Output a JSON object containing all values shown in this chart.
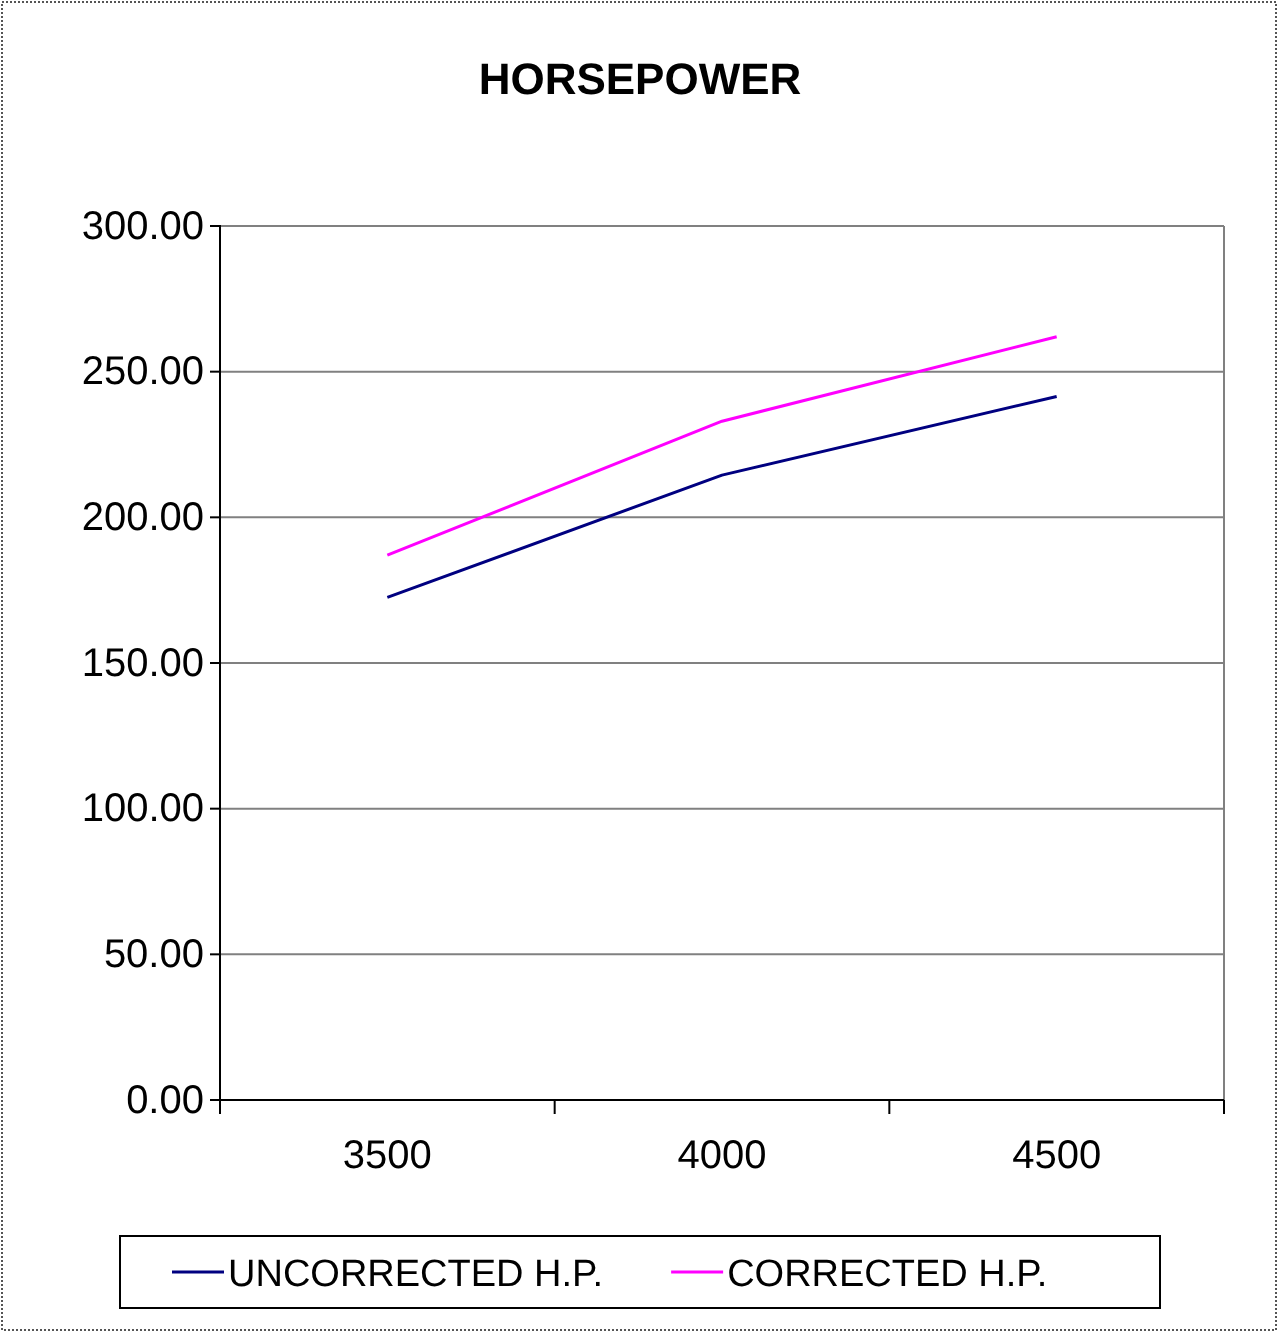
{
  "chart_data": {
    "type": "line",
    "title": "HORSEPOWER",
    "categories": [
      "3500",
      "4000",
      "4500"
    ],
    "series": [
      {
        "name": "UNCORRECTED H.P.",
        "color": "#000080",
        "values": [
          172.5,
          214.5,
          241.5
        ]
      },
      {
        "name": "CORRECTED H.P.",
        "color": "#ff00ff",
        "values": [
          187,
          233,
          262
        ]
      }
    ],
    "ylim": [
      0,
      300
    ],
    "yticks": [
      {
        "value": 0,
        "label": "0.00"
      },
      {
        "value": 50,
        "label": "50.00"
      },
      {
        "value": 100,
        "label": "100.00"
      },
      {
        "value": 150,
        "label": "150.00"
      },
      {
        "value": 200,
        "label": "200.00"
      },
      {
        "value": 250,
        "label": "250.00"
      },
      {
        "value": 300,
        "label": "300.00"
      }
    ],
    "grid": "y",
    "legend": "bottom",
    "marker": "none",
    "line_style": "solid"
  }
}
